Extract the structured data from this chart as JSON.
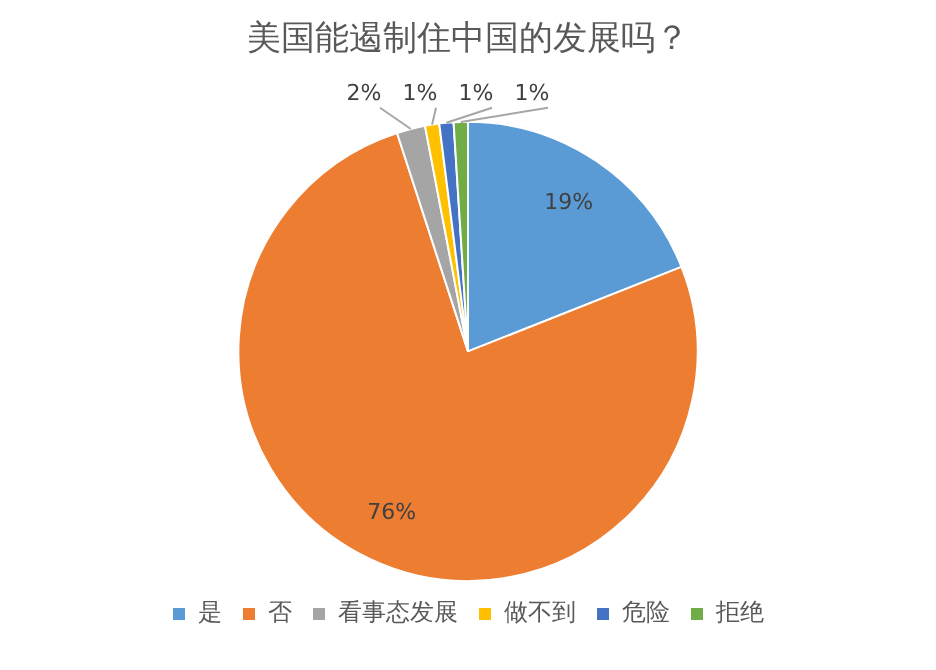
{
  "chart_data": {
    "type": "pie",
    "title": "美国能遏制住中国的发展吗？",
    "categories": [
      "是",
      "否",
      "看事态发展",
      "做不到",
      "危险",
      "拒绝"
    ],
    "values": [
      19,
      76,
      2,
      1,
      1,
      1
    ],
    "colors": [
      "#5b9bd5",
      "#ed7d31",
      "#a5a5a5",
      "#ffc000",
      "#4472c4",
      "#70ad47"
    ],
    "value_labels": [
      "19%",
      "76%",
      "2%",
      "1%",
      "1%",
      "1%"
    ],
    "legend": "bottom"
  }
}
